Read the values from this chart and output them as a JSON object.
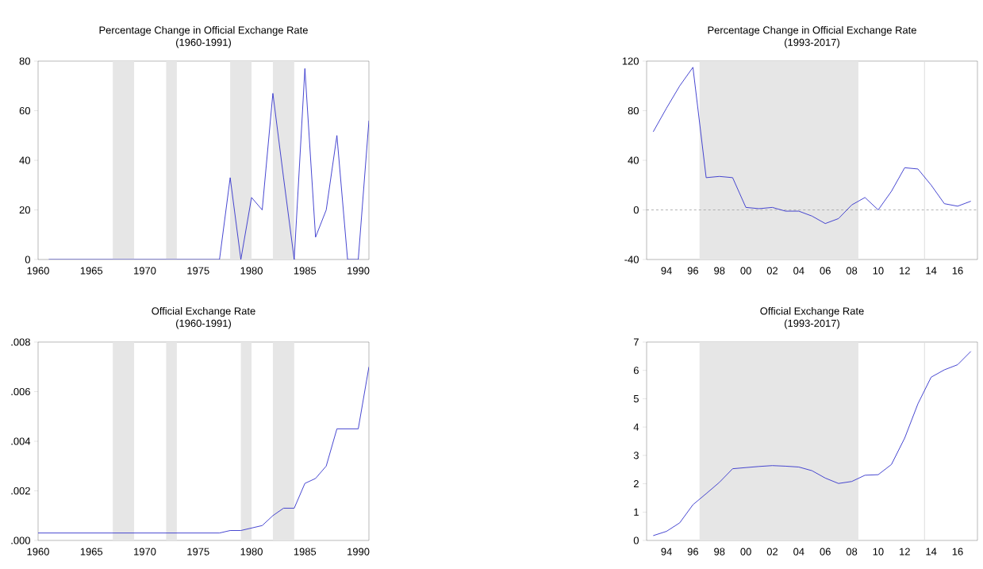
{
  "chart_data": [
    {
      "type": "line",
      "title": "Percentage Change in Official Exchange Rate",
      "subtitle": "(1960-1991)",
      "x": [
        1961,
        1962,
        1963,
        1964,
        1965,
        1966,
        1967,
        1968,
        1969,
        1970,
        1971,
        1972,
        1973,
        1974,
        1975,
        1976,
        1977,
        1978,
        1979,
        1980,
        1981,
        1982,
        1983,
        1984,
        1985,
        1986,
        1987,
        1988,
        1989,
        1990,
        1991
      ],
      "series": [
        {
          "color": "#3333cc",
          "values": [
            0,
            0,
            0,
            0,
            0,
            0,
            0,
            0,
            0,
            0,
            0,
            0,
            0,
            0,
            0,
            0,
            0,
            33,
            0,
            25,
            20,
            67,
            33,
            0,
            77,
            9,
            20,
            50,
            0,
            0,
            56
          ]
        }
      ],
      "xlim": [
        1960,
        1991
      ],
      "xticks": [
        1960,
        1965,
        1970,
        1975,
        1980,
        1985,
        1990
      ],
      "ylim": [
        0,
        80
      ],
      "yticks": [
        0,
        20,
        40,
        60,
        80
      ],
      "bands": [
        {
          "axis": "x",
          "from": 1967,
          "to": 1969,
          "color": "#e6e6e6"
        },
        {
          "axis": "x",
          "from": 1972,
          "to": 1973,
          "color": "#e6e6e6"
        },
        {
          "axis": "x",
          "from": 1978,
          "to": 1980,
          "color": "#e6e6e6"
        },
        {
          "axis": "x",
          "from": 1982,
          "to": 1984,
          "color": "#e6e6e6"
        }
      ]
    },
    {
      "type": "line",
      "title": "Percentage Change in Official Exchange Rate",
      "subtitle": "(1993-2017)",
      "x": [
        1993,
        1994,
        1995,
        1996,
        1997,
        1998,
        1999,
        2000,
        2001,
        2002,
        2003,
        2004,
        2005,
        2006,
        2007,
        2008,
        2009,
        2010,
        2011,
        2012,
        2013,
        2014,
        2015,
        2016,
        2017
      ],
      "series": [
        {
          "color": "#3333cc",
          "values": [
            63,
            82,
            100,
            115,
            26,
            27,
            26,
            2,
            1,
            2,
            -1,
            -1,
            -5,
            -11,
            -7,
            4,
            10,
            0,
            15,
            34,
            33,
            20,
            5,
            3,
            7
          ]
        }
      ],
      "xlim": [
        1992.5,
        2017.5
      ],
      "xticks": [
        {
          "value": 1994,
          "label": "94"
        },
        {
          "value": 1996,
          "label": "96"
        },
        {
          "value": 1998,
          "label": "98"
        },
        {
          "value": 2000,
          "label": "00"
        },
        {
          "value": 2002,
          "label": "02"
        },
        {
          "value": 2004,
          "label": "04"
        },
        {
          "value": 2006,
          "label": "06"
        },
        {
          "value": 2008,
          "label": "08"
        },
        {
          "value": 2010,
          "label": "10"
        },
        {
          "value": 2012,
          "label": "12"
        },
        {
          "value": 2014,
          "label": "14"
        },
        {
          "value": 2016,
          "label": "16"
        }
      ],
      "ylim": [
        -40,
        120
      ],
      "yticks": [
        -40,
        0,
        40,
        80,
        120
      ],
      "bands": [
        {
          "axis": "x",
          "from": 1996.5,
          "to": 2008.5,
          "color": "#e6e6e6"
        }
      ],
      "ref_lines": [
        {
          "axis": "y",
          "value": 0,
          "color": "#a0a0a0",
          "line_style": "dashed"
        },
        {
          "axis": "x",
          "value": 2013.5,
          "color": "#dddddd",
          "line_style": "solid"
        }
      ]
    },
    {
      "type": "line",
      "title": "Official Exchange Rate",
      "subtitle": "(1960-1991)",
      "x": [
        1960,
        1961,
        1962,
        1963,
        1964,
        1965,
        1966,
        1967,
        1968,
        1969,
        1970,
        1971,
        1972,
        1973,
        1974,
        1975,
        1976,
        1977,
        1978,
        1979,
        1980,
        1981,
        1982,
        1983,
        1984,
        1985,
        1986,
        1987,
        1988,
        1989,
        1990,
        1991
      ],
      "series": [
        {
          "color": "#3333cc",
          "values": [
            0.0003,
            0.0003,
            0.0003,
            0.0003,
            0.0003,
            0.0003,
            0.0003,
            0.0003,
            0.0003,
            0.0003,
            0.0003,
            0.0003,
            0.0003,
            0.0003,
            0.0003,
            0.0003,
            0.0003,
            0.0003,
            0.0004,
            0.0004,
            0.0005,
            0.0006,
            0.001,
            0.0013,
            0.0013,
            0.0023,
            0.0025,
            0.003,
            0.0045,
            0.0045,
            0.0045,
            0.007
          ]
        }
      ],
      "xlim": [
        1960,
        1991
      ],
      "xticks": [
        1960,
        1965,
        1970,
        1975,
        1980,
        1985,
        1990
      ],
      "ylim": [
        0,
        0.008
      ],
      "yticks": [
        {
          "value": 0,
          "label": ".000"
        },
        {
          "value": 0.002,
          "label": ".002"
        },
        {
          "value": 0.004,
          "label": ".004"
        },
        {
          "value": 0.006,
          "label": ".006"
        },
        {
          "value": 0.008,
          "label": ".008"
        }
      ],
      "bands": [
        {
          "axis": "x",
          "from": 1967,
          "to": 1969,
          "color": "#e6e6e6"
        },
        {
          "axis": "x",
          "from": 1972,
          "to": 1973,
          "color": "#e6e6e6"
        },
        {
          "axis": "x",
          "from": 1979,
          "to": 1980,
          "color": "#e6e6e6"
        },
        {
          "axis": "x",
          "from": 1982,
          "to": 1984,
          "color": "#e6e6e6"
        }
      ]
    },
    {
      "type": "line",
      "title": "Official Exchange Rate",
      "subtitle": "(1993-2017)",
      "x": [
        1993,
        1994,
        1995,
        1996,
        1997,
        1998,
        1999,
        2000,
        2001,
        2002,
        2003,
        2004,
        2005,
        2006,
        2007,
        2008,
        2009,
        2010,
        2011,
        2012,
        2013,
        2014,
        2015,
        2016,
        2017
      ],
      "series": [
        {
          "color": "#3333cc",
          "values": [
            0.17,
            0.32,
            0.62,
            1.26,
            1.65,
            2.05,
            2.53,
            2.57,
            2.61,
            2.64,
            2.62,
            2.59,
            2.46,
            2.2,
            2.01,
            2.08,
            2.3,
            2.32,
            2.68,
            3.61,
            4.82,
            5.76,
            6.02,
            6.2,
            6.67
          ]
        }
      ],
      "xlim": [
        1992.5,
        2017.5
      ],
      "xticks": [
        {
          "value": 1994,
          "label": "94"
        },
        {
          "value": 1996,
          "label": "96"
        },
        {
          "value": 1998,
          "label": "98"
        },
        {
          "value": 2000,
          "label": "00"
        },
        {
          "value": 2002,
          "label": "02"
        },
        {
          "value": 2004,
          "label": "04"
        },
        {
          "value": 2006,
          "label": "06"
        },
        {
          "value": 2008,
          "label": "08"
        },
        {
          "value": 2010,
          "label": "10"
        },
        {
          "value": 2012,
          "label": "12"
        },
        {
          "value": 2014,
          "label": "14"
        },
        {
          "value": 2016,
          "label": "16"
        }
      ],
      "ylim": [
        0,
        7
      ],
      "yticks": [
        0,
        1,
        2,
        3,
        4,
        5,
        6,
        7
      ],
      "bands": [
        {
          "axis": "x",
          "from": 1996.5,
          "to": 2008.5,
          "color": "#e6e6e6"
        }
      ],
      "ref_lines": [
        {
          "axis": "x",
          "value": 2013.5,
          "color": "#dddddd",
          "line_style": "solid"
        }
      ]
    }
  ]
}
